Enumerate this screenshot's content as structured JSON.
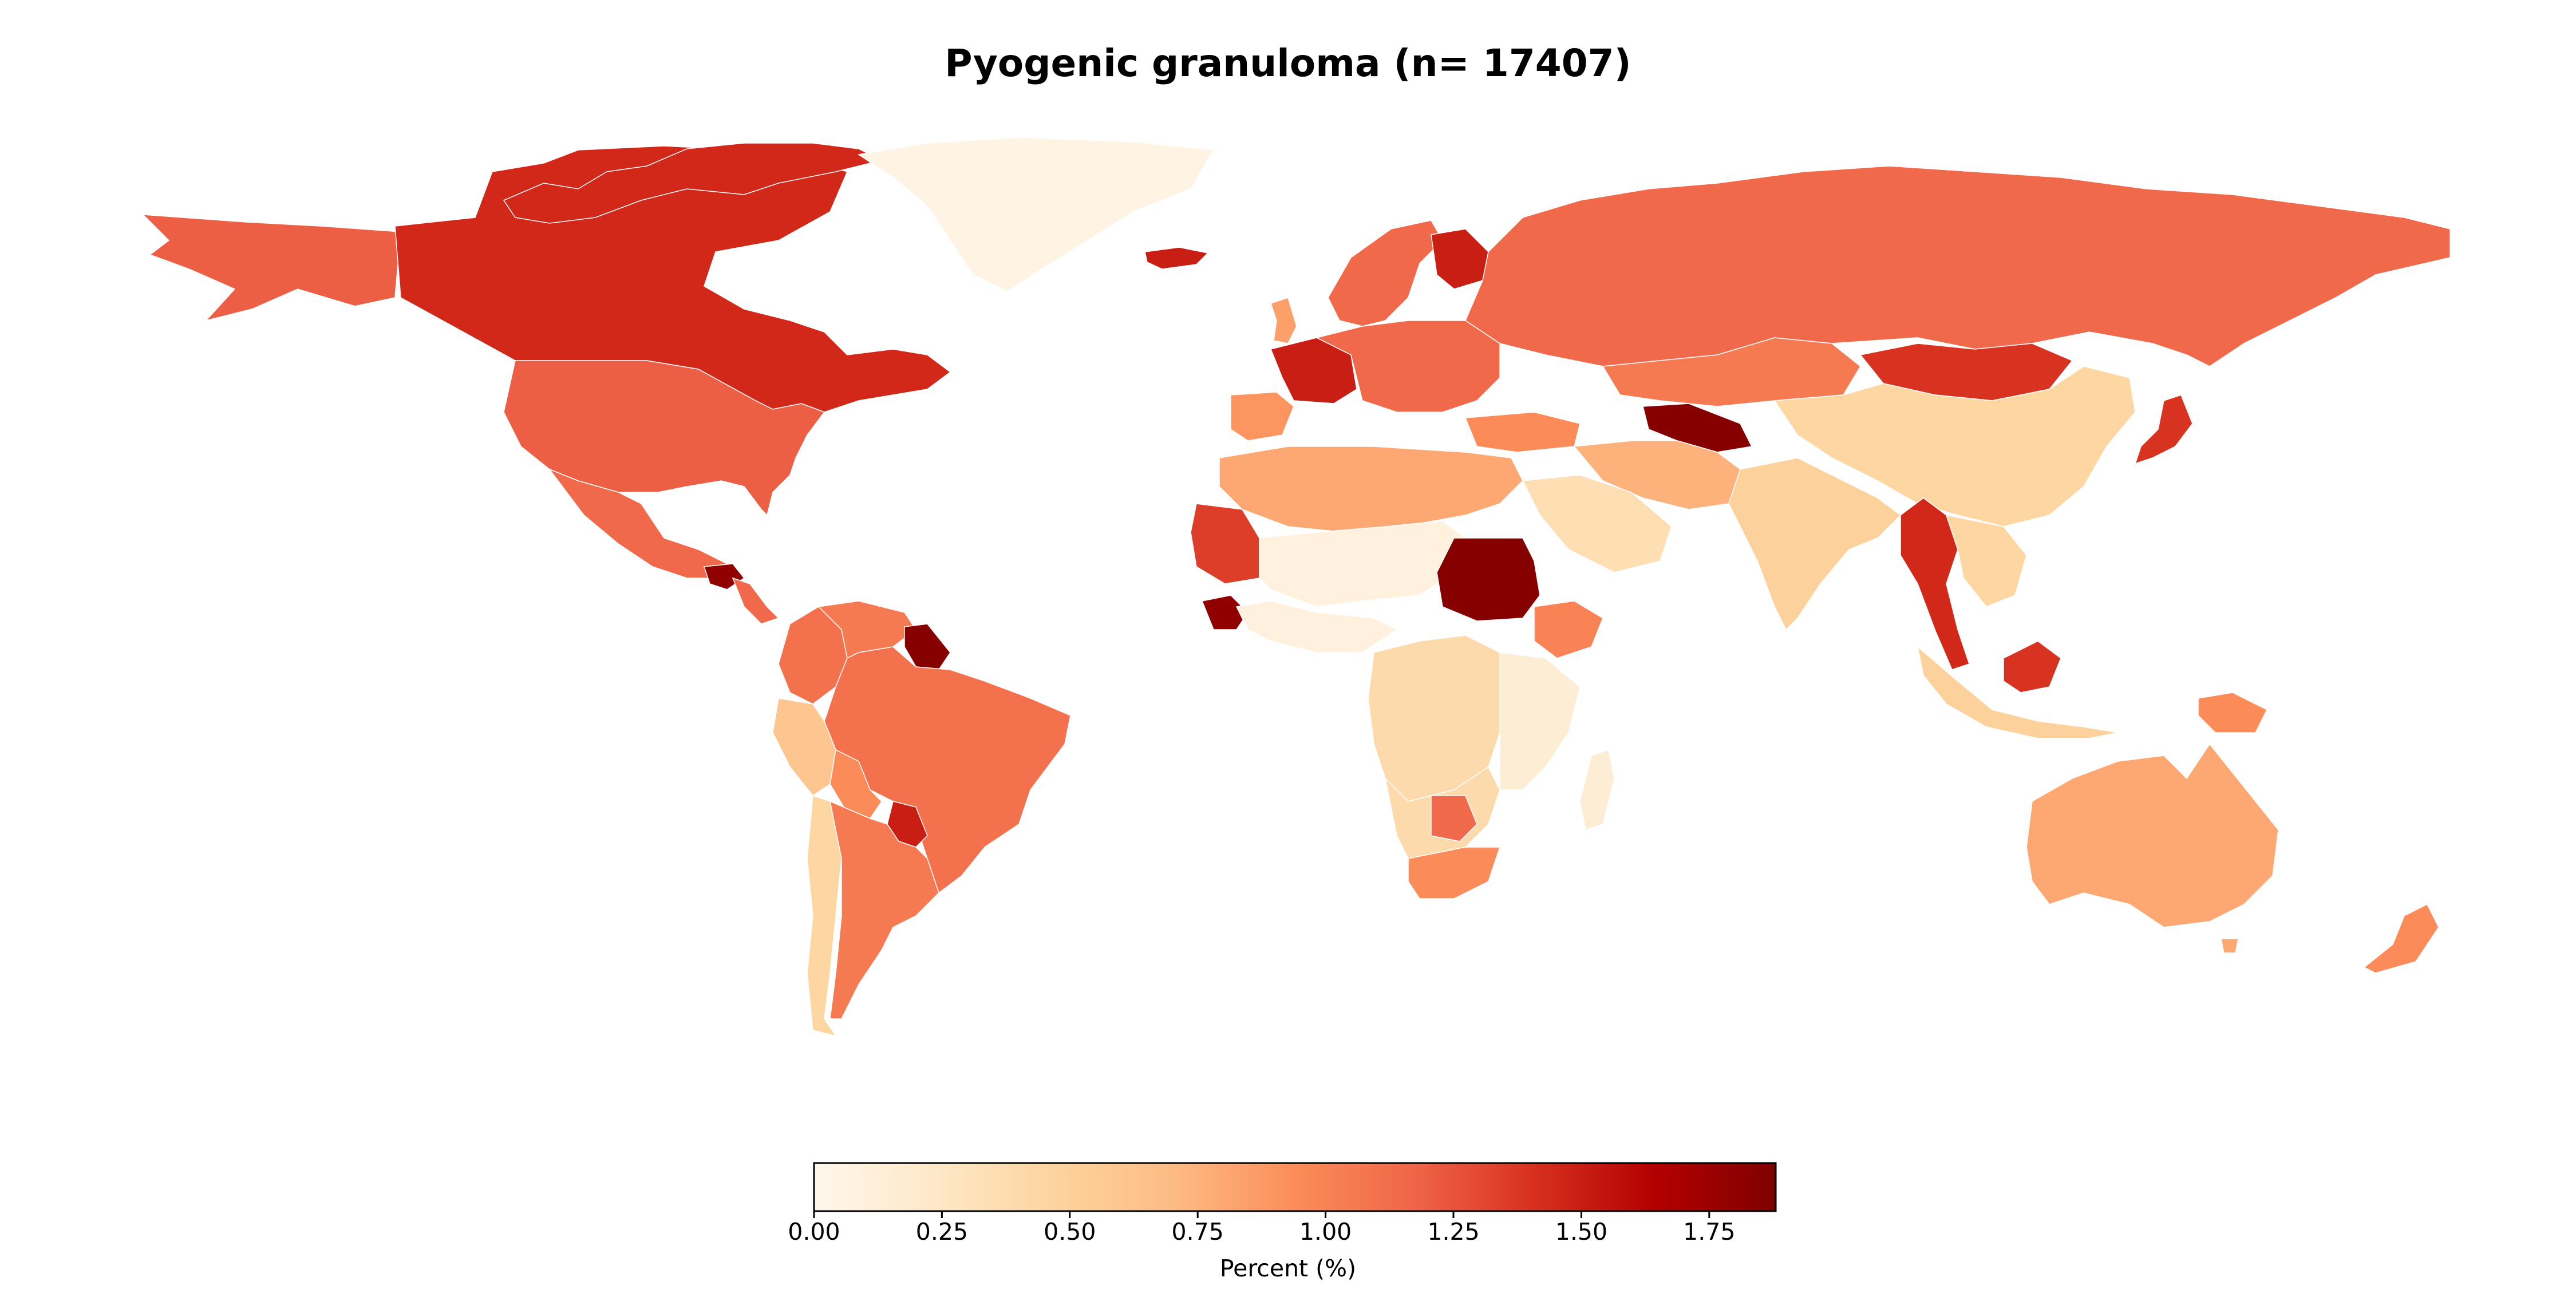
{
  "title": "Pyogenic granuloma (n= 17407)",
  "colorbar": {
    "label": "Percent (%)",
    "min": 0.0,
    "max": 1.88,
    "ticks": [
      "0.00",
      "0.25",
      "0.50",
      "0.75",
      "1.00",
      "1.25",
      "1.50",
      "1.75"
    ],
    "tick_values": [
      0.0,
      0.25,
      0.5,
      0.75,
      1.0,
      1.25,
      1.5,
      1.75
    ],
    "colormap": "OrRd",
    "stops": [
      "#fff7ec",
      "#fee8c8",
      "#fdd49e",
      "#fdbb84",
      "#fc8d59",
      "#ef6548",
      "#d7301f",
      "#b30000",
      "#7f0000"
    ]
  },
  "regions": [
    {
      "name": "Canada",
      "value": 1.45
    },
    {
      "name": "United States",
      "value": 1.2
    },
    {
      "name": "Alaska",
      "value": 1.2
    },
    {
      "name": "Greenland",
      "value": 0.05
    },
    {
      "name": "Mexico",
      "value": 1.15
    },
    {
      "name": "Guatemala",
      "value": 1.8
    },
    {
      "name": "Colombia",
      "value": 1.1
    },
    {
      "name": "Venezuela",
      "value": 1.05
    },
    {
      "name": "Guyana",
      "value": 1.85
    },
    {
      "name": "Brazil",
      "value": 1.1
    },
    {
      "name": "Peru",
      "value": 0.6
    },
    {
      "name": "Bolivia",
      "value": 0.95
    },
    {
      "name": "Paraguay",
      "value": 1.5
    },
    {
      "name": "Argentina",
      "value": 1.05
    },
    {
      "name": "Chile",
      "value": 0.45
    },
    {
      "name": "Iceland",
      "value": 1.5
    },
    {
      "name": "France",
      "value": 1.5
    },
    {
      "name": "United Kingdom",
      "value": 0.85
    },
    {
      "name": "Spain",
      "value": 0.9
    },
    {
      "name": "Finland",
      "value": 1.5
    },
    {
      "name": "Scandinavia",
      "value": 1.15
    },
    {
      "name": "Russia",
      "value": 1.15
    },
    {
      "name": "Kazakhstan",
      "value": 1.05
    },
    {
      "name": "Turkmenistan",
      "value": 1.85
    },
    {
      "name": "Mongolia",
      "value": 1.4
    },
    {
      "name": "China",
      "value": 0.45
    },
    {
      "name": "India",
      "value": 0.5
    },
    {
      "name": "Myanmar",
      "value": 1.45
    },
    {
      "name": "Japan",
      "value": 1.4
    },
    {
      "name": "Saudi Arabia",
      "value": 0.35
    },
    {
      "name": "Iran",
      "value": 0.75
    },
    {
      "name": "Turkey",
      "value": 0.95
    },
    {
      "name": "North Africa",
      "value": 0.8
    },
    {
      "name": "Mauritania",
      "value": 1.35
    },
    {
      "name": "Guinea",
      "value": 1.8
    },
    {
      "name": "Sahel",
      "value": 0.1
    },
    {
      "name": "Sudan",
      "value": 1.85
    },
    {
      "name": "Ethiopia",
      "value": 1.0
    },
    {
      "name": "Central Africa",
      "value": 0.4
    },
    {
      "name": "East Africa",
      "value": 0.15
    },
    {
      "name": "Southern Africa",
      "value": 0.4
    },
    {
      "name": "Botswana",
      "value": 1.15
    },
    {
      "name": "South Africa",
      "value": 0.95
    },
    {
      "name": "Madagascar",
      "value": 0.15
    },
    {
      "name": "Australia",
      "value": 0.8
    },
    {
      "name": "New Zealand",
      "value": 0.95
    },
    {
      "name": "Borneo",
      "value": 1.4
    },
    {
      "name": "Indonesia",
      "value": 0.5
    },
    {
      "name": "Papua New Guinea",
      "value": 0.95
    }
  ]
}
